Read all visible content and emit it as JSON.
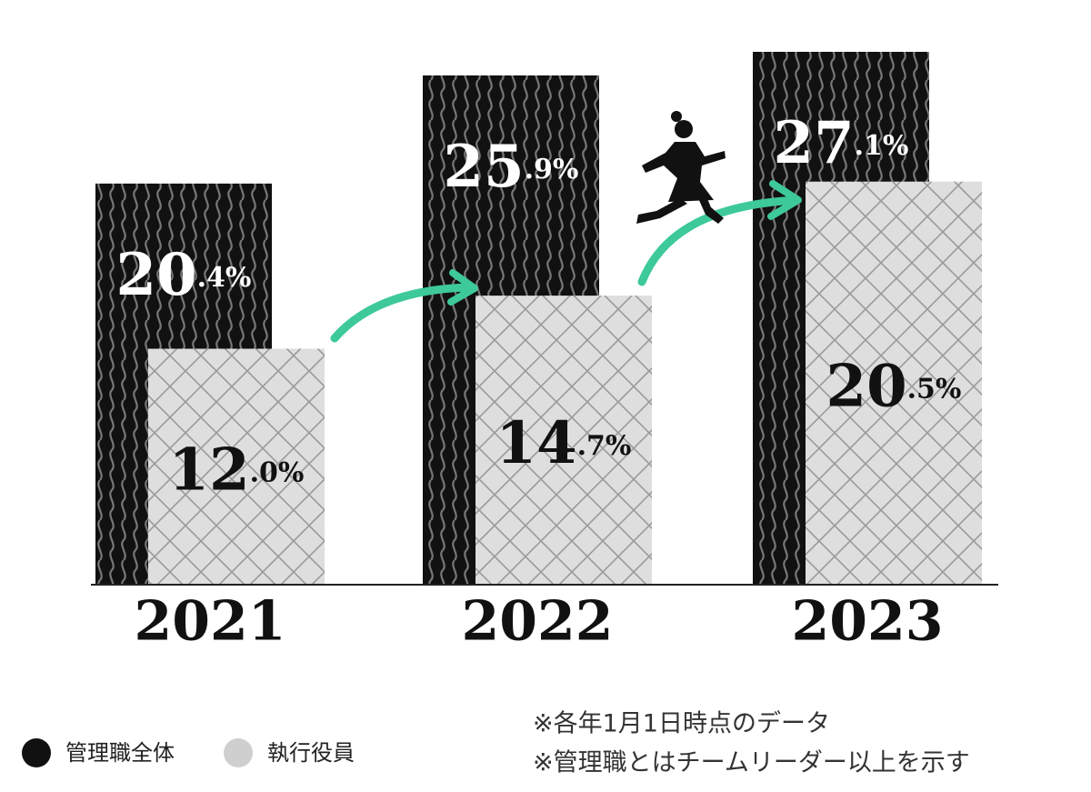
{
  "chart_data": {
    "type": "bar",
    "categories": [
      "2021",
      "2022",
      "2023"
    ],
    "series": [
      {
        "name": "管理職全体",
        "color": "#111111",
        "values": [
          20.4,
          25.9,
          27.1
        ],
        "value_labels": [
          "20.4%",
          "25.9%",
          "27.1%"
        ]
      },
      {
        "name": "執行役員",
        "color": "#dddddd",
        "values": [
          12.0,
          14.7,
          20.5
        ],
        "value_labels": [
          "12.0%",
          "14.7%",
          "20.5%"
        ]
      }
    ],
    "notes": [
      "※各年1月1日時点のデータ",
      "※管理職とはチームリーダー以上を示す"
    ]
  }
}
